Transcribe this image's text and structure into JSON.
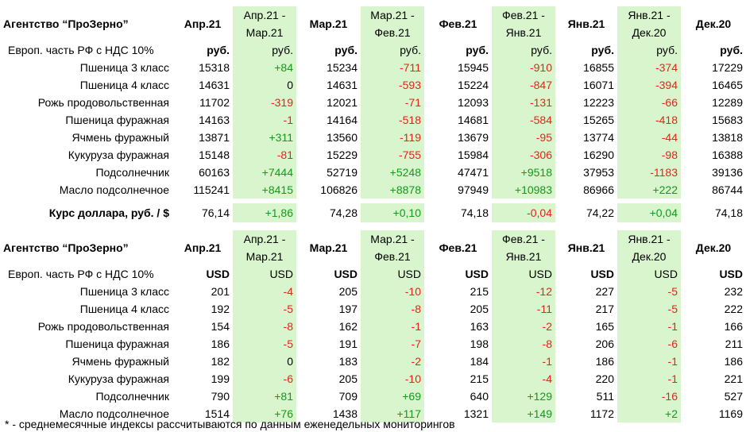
{
  "columns": {
    "labels_rub": [
      {
        "text": "Апр.21",
        "green": false
      },
      {
        "text": "Апр.21 - Мар.21",
        "green": true,
        "two": [
          "Апр.21 -",
          "Мар.21"
        ]
      },
      {
        "text": "Мар.21",
        "green": false
      },
      {
        "text": "Мар.21 - Фев.21",
        "green": true,
        "two": [
          "Мар.21 -",
          "Фев.21"
        ]
      },
      {
        "text": "Фев.21",
        "green": false
      },
      {
        "text": "Фев.21 - Янв.21",
        "green": true,
        "two": [
          "Фев.21 -",
          "Янв.21"
        ]
      },
      {
        "text": "Янв.21",
        "green": false
      },
      {
        "text": "Янв.21 - Дек.20",
        "green": true,
        "two": [
          "Янв.21 -",
          "Дек.20"
        ]
      },
      {
        "text": "Дек.20",
        "green": false
      }
    ]
  },
  "table_rub": {
    "title": "Агентство “ПроЗерно”",
    "subtitle": "Европ. часть РФ с НДС 10%",
    "units": [
      "руб.",
      "руб.",
      "руб.",
      "руб.",
      "руб.",
      "руб.",
      "руб.",
      "руб.",
      "руб."
    ],
    "rows": [
      {
        "name": "Пшеница 3 класс",
        "values": [
          "15318",
          "+84",
          "15234",
          "-711",
          "15945",
          "-910",
          "16855",
          "-374",
          "17229"
        ]
      },
      {
        "name": "Пшеница 4 класс",
        "values": [
          "14631",
          "0",
          "14631",
          "-593",
          "15224",
          "-847",
          "16071",
          "-394",
          "16465"
        ]
      },
      {
        "name": "Рожь продовольственная",
        "values": [
          "11702",
          "-319",
          "12021",
          "-71",
          "12093",
          "-131",
          "12223",
          "-66",
          "12289"
        ]
      },
      {
        "name": "Пшеница фуражная",
        "values": [
          "14163",
          "-1",
          "14164",
          "-518",
          "14681",
          "-584",
          "15265",
          "-418",
          "15683"
        ]
      },
      {
        "name": "Ячмень фуражный",
        "values": [
          "13871",
          "+311",
          "13560",
          "-119",
          "13679",
          "-95",
          "13774",
          "-44",
          "13818"
        ]
      },
      {
        "name": "Кукуруза фуражная",
        "values": [
          "15148",
          "-81",
          "15229",
          "-755",
          "15984",
          "-306",
          "16290",
          "-98",
          "16388"
        ]
      },
      {
        "name": "Подсолнечник",
        "values": [
          "60163",
          "+7444",
          "52719",
          "+5248",
          "47471",
          "+9518",
          "37953",
          "-1183",
          "39136"
        ]
      },
      {
        "name": "Масло подсолнечное",
        "values": [
          "115241",
          "+8415",
          "106826",
          "+8878",
          "97949",
          "+10983",
          "86966",
          "+222",
          "86744"
        ]
      }
    ]
  },
  "exchange": {
    "label": "Курс доллара, руб. / $",
    "values": [
      "76,14",
      "+1,86",
      "74,28",
      "+0,10",
      "74,18",
      "-0,04",
      "74,22",
      "+0,04",
      "74,18"
    ]
  },
  "table_usd": {
    "title": "Агентство “ПроЗерно”",
    "subtitle": "Европ. часть РФ с НДС 10%",
    "units": [
      "USD",
      "USD",
      "USD",
      "USD",
      "USD",
      "USD",
      "USD",
      "USD",
      "USD"
    ],
    "rows": [
      {
        "name": "Пшеница 3 класс",
        "values": [
          "201",
          "-4",
          "205",
          "-10",
          "215",
          "-12",
          "227",
          "-5",
          "232"
        ]
      },
      {
        "name": "Пшеница 4 класс",
        "values": [
          "192",
          "-5",
          "197",
          "-8",
          "205",
          "-11",
          "217",
          "-5",
          "222"
        ]
      },
      {
        "name": "Рожь продовольственная",
        "values": [
          "154",
          "-8",
          "162",
          "-1",
          "163",
          "-2",
          "165",
          "-1",
          "166"
        ]
      },
      {
        "name": "Пшеница фуражная",
        "values": [
          "186",
          "-5",
          "191",
          "-7",
          "198",
          "-8",
          "206",
          "-6",
          "211"
        ]
      },
      {
        "name": "Ячмень фуражный",
        "values": [
          "182",
          "0",
          "183",
          "-2",
          "184",
          "-1",
          "186",
          "-1",
          "186"
        ]
      },
      {
        "name": "Кукуруза фуражная",
        "values": [
          "199",
          "-6",
          "205",
          "-10",
          "215",
          "-4",
          "220",
          "-1",
          "221"
        ]
      },
      {
        "name": "Подсолнечник",
        "values": [
          "790",
          "+81",
          "709",
          "+69",
          "640",
          "+129",
          "511",
          "-16",
          "527"
        ]
      },
      {
        "name": "Масло подсолнечное",
        "values": [
          "1514",
          "+76",
          "1438",
          "+117",
          "1321",
          "+149",
          "1172",
          "+2",
          "1169"
        ]
      }
    ]
  },
  "footnote": "* - среднемесячные индексы рассчитываются по данным еженедельных мониторингов",
  "colors": {
    "positive": "#139a18",
    "negative": "#e3241b",
    "highlight": "#d8f5cd"
  }
}
